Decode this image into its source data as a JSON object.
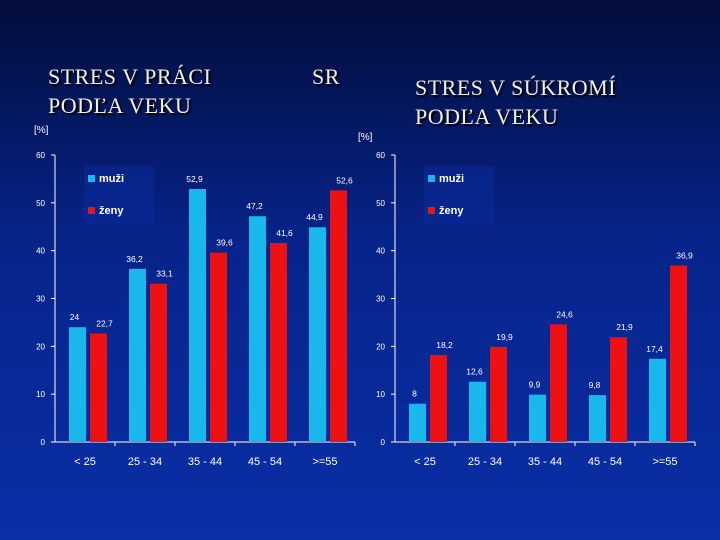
{
  "slide": {
    "title_left_line1": "STRES V PRÁCI",
    "title_left_line2": "PODĽA VEKU",
    "title_mid": "SR",
    "title_right_line1": "STRES V SÚKROMÍ",
    "title_right_line2": "PODĽA VEKU"
  },
  "colors": {
    "men": "#19b8ec",
    "women": "#ee1111",
    "axis": "#ffffff",
    "label": "#ffffff",
    "legend_bg": "#0a2a9a"
  },
  "chart_data": [
    {
      "type": "bar",
      "title": "STRES V PRÁCI PODĽA VEKU",
      "ylabel": "[%]",
      "ylim": [
        0,
        60
      ],
      "yticks": [
        0,
        10,
        20,
        30,
        40,
        50,
        60
      ],
      "categories": [
        "< 25",
        "25 - 34",
        "35 - 44",
        "45 - 54",
        ">=55"
      ],
      "series": [
        {
          "name": "muži",
          "values": [
            24,
            36.2,
            52.9,
            47.2,
            44.9
          ],
          "labels": [
            "24",
            "36,2",
            "52,9",
            "47,2",
            "44,9"
          ]
        },
        {
          "name": "ženy",
          "values": [
            22.7,
            33.1,
            39.6,
            41.6,
            52.6
          ],
          "labels": [
            "22,7",
            "33,1",
            "39,6",
            "41,6",
            "52,6"
          ]
        }
      ],
      "legend": "top-left",
      "grid": false
    },
    {
      "type": "bar",
      "title": "STRES V SÚKROMÍ PODĽA VEKU",
      "ylabel": "[%]",
      "ylim": [
        0,
        60
      ],
      "yticks": [
        0,
        10,
        20,
        30,
        40,
        50,
        60
      ],
      "categories": [
        "< 25",
        "25 - 34",
        "35 - 44",
        "45 - 54",
        ">=55"
      ],
      "series": [
        {
          "name": "muži",
          "values": [
            8,
            12.6,
            9.9,
            9.8,
            17.4
          ],
          "labels": [
            "8",
            "12,6",
            "9,9",
            "9,8",
            "17,4"
          ]
        },
        {
          "name": "ženy",
          "values": [
            18.2,
            19.9,
            24.6,
            21.9,
            36.9
          ],
          "labels": [
            "18,2",
            "19,9",
            "24,6",
            "21,9",
            "36,9"
          ]
        }
      ],
      "legend": "top-left",
      "grid": false
    }
  ]
}
